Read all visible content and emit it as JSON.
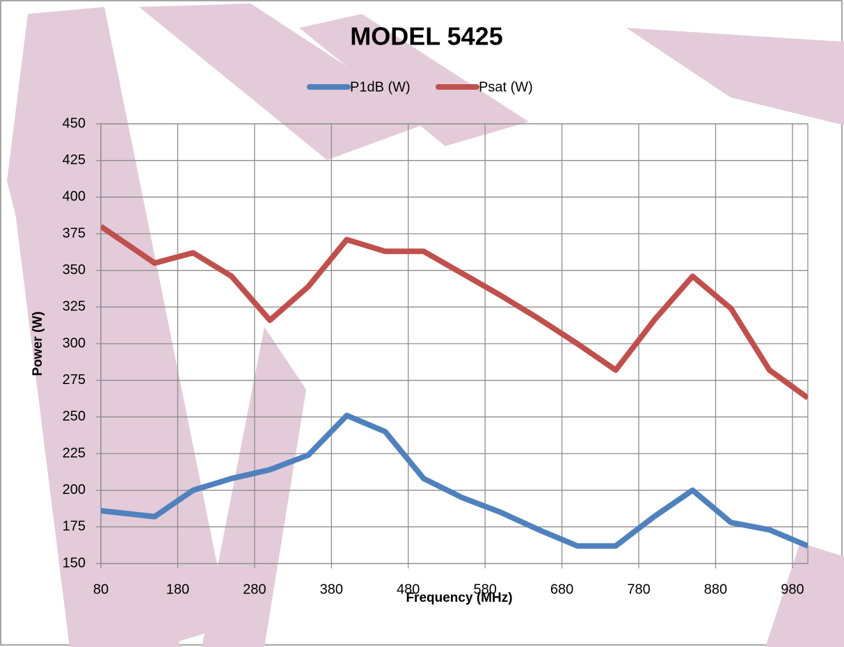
{
  "chart_data": {
    "type": "line",
    "title": "MODEL 5425",
    "x_label": "Frequency (MHz)",
    "y_label": "Power (W)",
    "x": [
      80,
      150,
      200,
      250,
      300,
      350,
      400,
      450,
      500,
      550,
      600,
      650,
      700,
      750,
      800,
      850,
      900,
      950,
      1000
    ],
    "series": [
      {
        "name": "P1dB (W)",
        "color": "#4f81bd",
        "values": [
          186,
          182,
          200,
          208,
          214,
          224,
          251,
          240,
          208,
          195,
          185,
          173,
          162,
          162,
          182,
          200,
          178,
          173,
          162
        ]
      },
      {
        "name": "Psat (W)",
        "color": "#c0504d",
        "values": [
          380,
          355,
          362,
          346,
          316,
          339,
          371,
          363,
          363,
          348,
          333,
          317,
          300,
          282,
          316,
          346,
          324,
          282,
          263
        ]
      }
    ],
    "xlim": [
      80,
      1000
    ],
    "xticks": [
      80,
      180,
      280,
      380,
      480,
      580,
      680,
      780,
      880,
      980
    ],
    "ylim": [
      150,
      450
    ],
    "yticks": [
      150,
      175,
      200,
      225,
      250,
      275,
      300,
      325,
      350,
      375,
      400,
      425,
      450
    ],
    "grid": true,
    "legend": "top"
  }
}
